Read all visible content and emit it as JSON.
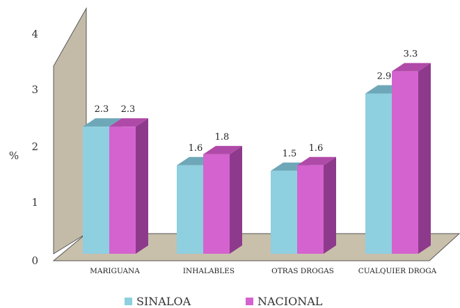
{
  "chart_data": {
    "type": "bar",
    "title": "",
    "xlabel": "",
    "ylabel": "%",
    "ylim": [
      0,
      4
    ],
    "yticks": [
      "0",
      "1",
      "2",
      "3",
      "4"
    ],
    "categories": [
      "MARIGUANA",
      "INHALABLES",
      "OTRAS DROGAS",
      "CUALQUIER DROGA"
    ],
    "series": [
      {
        "name": "SINALOA",
        "values": [
          2.3,
          1.6,
          1.5,
          2.9
        ],
        "labels": [
          "2.3",
          "1.6",
          "1.5",
          "2.9"
        ],
        "color": "#8ecfe0",
        "side_color": "#5fa0b4",
        "top_color": "#6ea8b8"
      },
      {
        "name": "NACIONAL",
        "values": [
          2.3,
          1.8,
          1.6,
          3.3
        ],
        "labels": [
          "2.3",
          "1.8",
          "1.6",
          "3.3"
        ],
        "color": "#d463cf",
        "side_color": "#8e3a8c",
        "top_color": "#b04aa8"
      }
    ],
    "grid": false,
    "legend_position": "bottom",
    "three_d": true,
    "wall_color": "#c3bba8",
    "floor_color": "#c9c0ab"
  }
}
